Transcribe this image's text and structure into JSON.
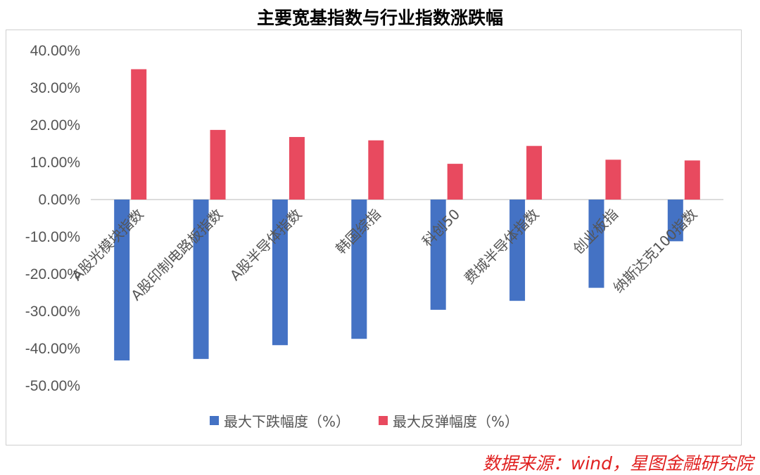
{
  "chart_data": {
    "type": "bar",
    "title": "主要宽基指数与行业指数涨跌幅",
    "categories": [
      "A股光模块指数",
      "A股印制电路板指数",
      "A股半导体指数",
      "韩国综指",
      "科创50",
      "费城半导体指数",
      "创业板指",
      "纳斯达克100指数"
    ],
    "series": [
      {
        "name": "最大下跌幅度（%）",
        "values": [
          -43.2,
          -42.8,
          -39.1,
          -37.4,
          -29.6,
          -27.2,
          -23.7,
          -11.2
        ]
      },
      {
        "name": "最大反弹幅度（%）",
        "values": [
          35.0,
          18.7,
          16.8,
          15.9,
          9.6,
          14.4,
          10.7,
          10.5
        ]
      }
    ],
    "ylim": [
      -50,
      40
    ],
    "yticks": [
      "40.00%",
      "30.00%",
      "20.00%",
      "10.00%",
      "0.00%",
      "-10.00%",
      "-20.00%",
      "-30.00%",
      "-40.00%",
      "-50.00%"
    ],
    "grid": false,
    "legend": "bottom",
    "colors": {
      "drop": "#4472c4",
      "rebound": "#e84a5f"
    }
  },
  "source": "数据来源：wind，星图金融研究院"
}
